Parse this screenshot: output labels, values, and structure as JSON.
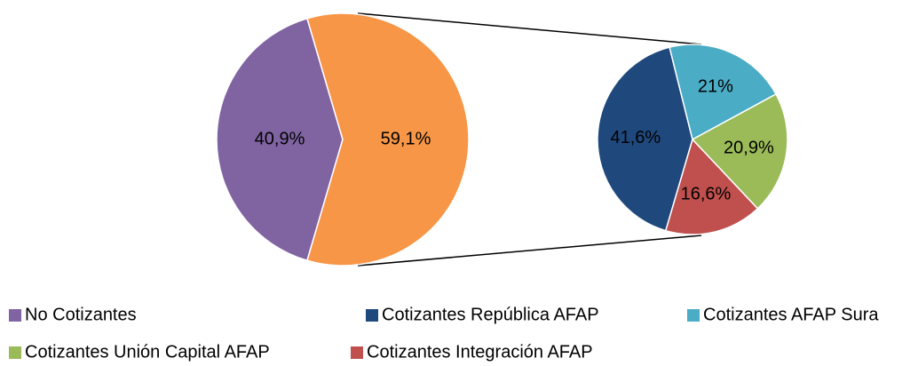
{
  "chart_data": [
    {
      "type": "pie",
      "categories": [
        "No Cotizantes",
        null
      ],
      "values": [
        40.9,
        59.1
      ],
      "value_labels": [
        "40,9%",
        "59,1%"
      ],
      "colors": [
        "#8064a2",
        "#f79646"
      ]
    },
    {
      "type": "pie",
      "categories": [
        "Cotizantes República AFAP",
        "Cotizantes AFAP Sura",
        "Cotizantes Unión Capital AFAP",
        "Cotizantes Integración AFAP"
      ],
      "values": [
        41.6,
        21,
        20.9,
        16.6
      ],
      "value_labels": [
        "41,6%",
        "21%",
        "20,9%",
        "16,6%"
      ],
      "colors": [
        "#1f497d",
        "#4bacc6",
        "#9bbb59",
        "#c0504d"
      ]
    }
  ]
}
